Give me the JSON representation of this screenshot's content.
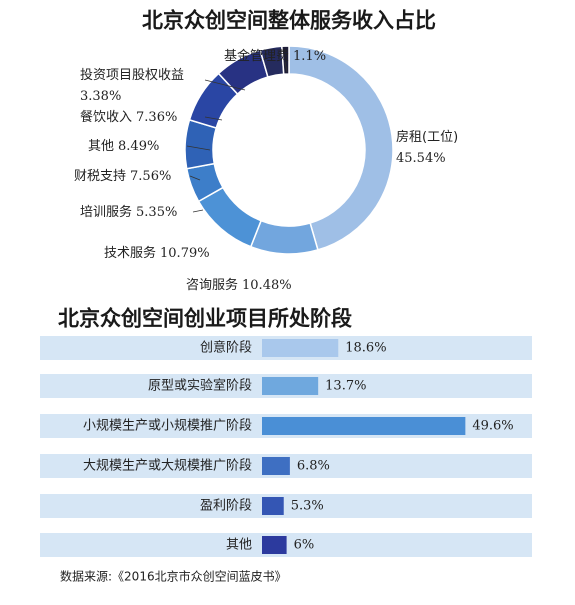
{
  "chart_data": [
    {
      "type": "donut",
      "title": "北京众创空间整体服务收入占比",
      "categories": [
        "房租(工位)",
        "咨询服务",
        "技术服务",
        "培训服务",
        "财税支持",
        "其他",
        "餐饮收入",
        "投资项目股权收益",
        "基金管理费"
      ],
      "values": [
        45.54,
        10.48,
        10.79,
        5.35,
        7.56,
        8.49,
        7.36,
        3.38,
        1.1
      ],
      "value_labels": [
        "45.54%",
        "10.48%",
        "10.79%",
        "5.35%",
        "7.56%",
        "8.49%",
        "7.36%",
        "3.38%",
        "1.1%"
      ],
      "colors": [
        "#9fbfe6",
        "#72a6de",
        "#4d92d6",
        "#3d7ec9",
        "#2f62b6",
        "#2a46a4",
        "#283283",
        "#252b5e",
        "#1d1d38"
      ]
    },
    {
      "type": "hbar",
      "title": "北京众创空间创业项目所处阶段",
      "categories": [
        "创意阶段",
        "原型或实验室阶段",
        "小规模生产或小规模推广阶段",
        "大规模生产或大规模推广阶段",
        "盈利阶段",
        "其他"
      ],
      "values": [
        18.6,
        13.7,
        49.6,
        6.8,
        5.3,
        6
      ],
      "value_labels": [
        "18.6%",
        "13.7%",
        "49.6%",
        "6.8%",
        "5.3%",
        "6%"
      ],
      "colors": [
        "#a9c8ec",
        "#6fa8de",
        "#4a8fd6",
        "#3e6fc2",
        "#3456b4",
        "#2c3a9e"
      ]
    }
  ],
  "source": "数据来源:《2016北京市众创空间蓝皮书》"
}
